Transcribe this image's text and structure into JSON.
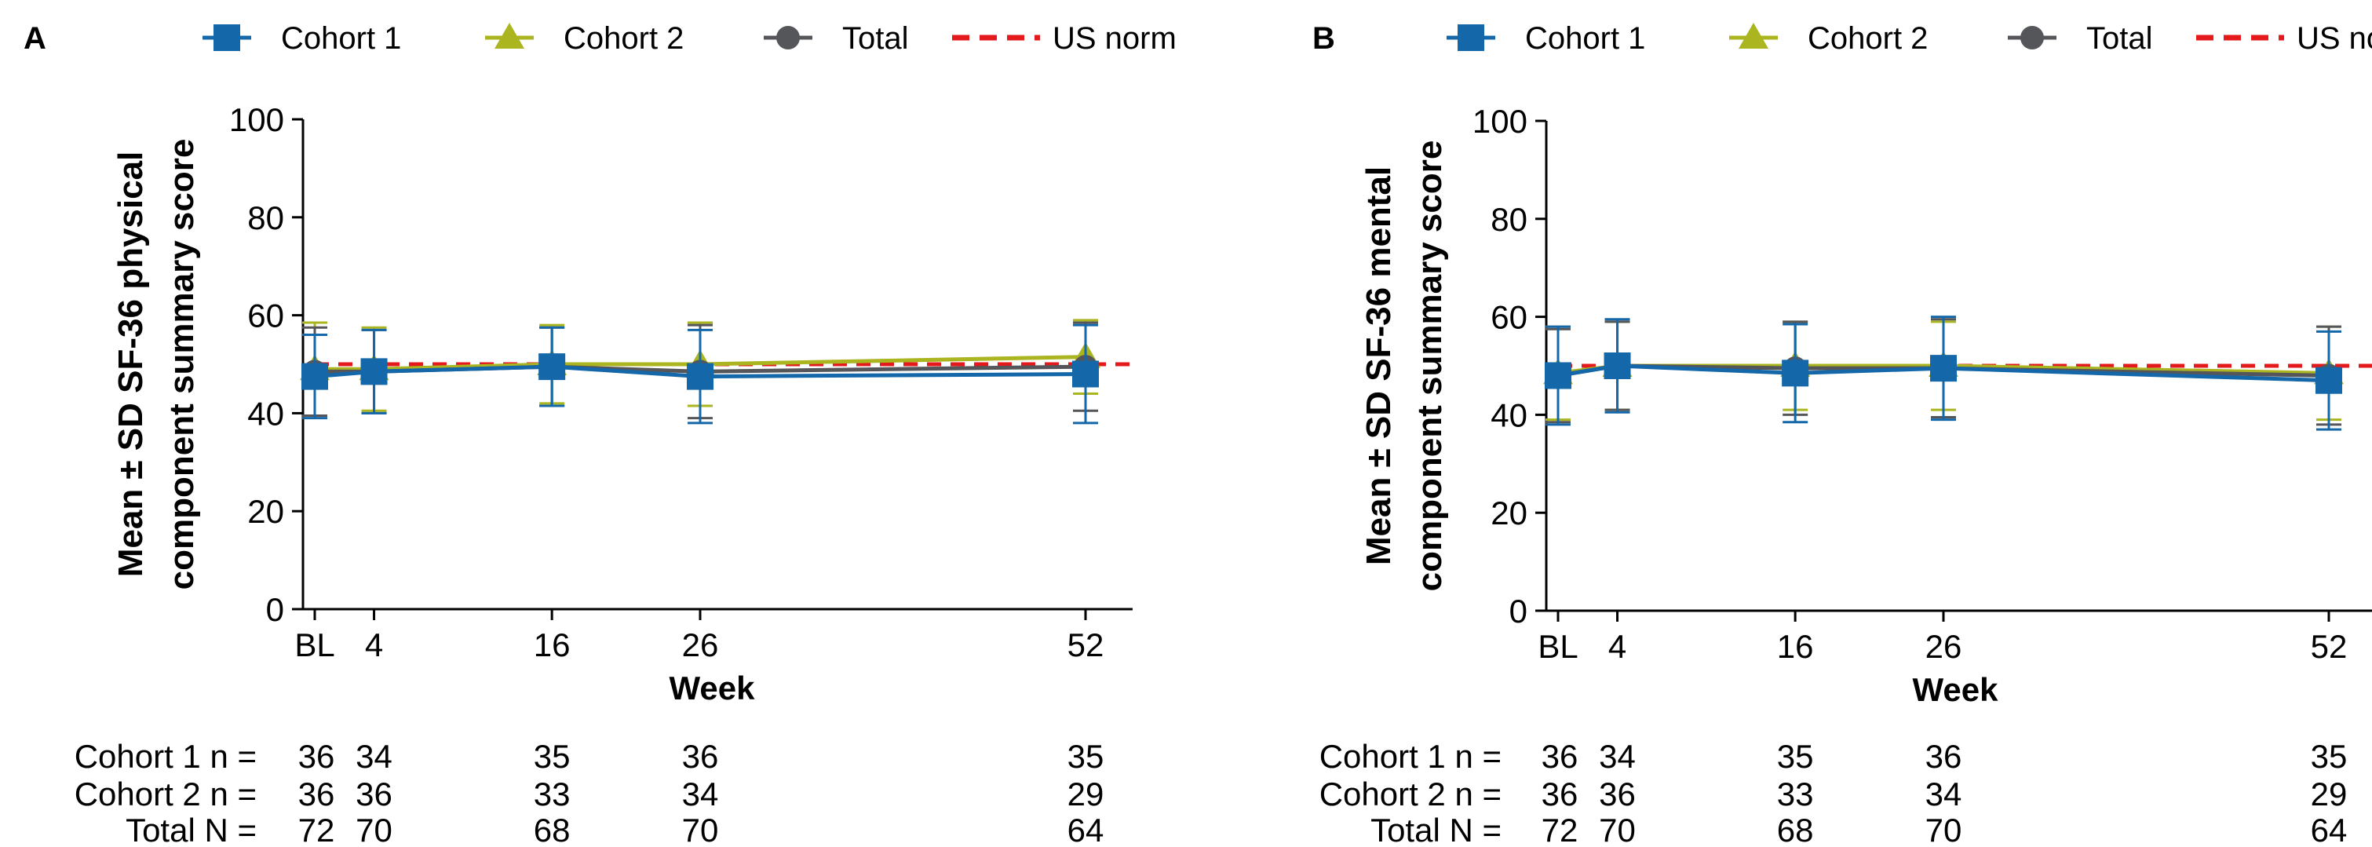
{
  "chart_data": [
    {
      "type": "line",
      "panel_label": "A",
      "xlabel": "Week",
      "ylabel_lines": [
        "Mean ± SD SF-36 physical",
        "component summary score"
      ],
      "ylim": [
        0,
        100
      ],
      "yticks": [
        0,
        20,
        40,
        60,
        80,
        100
      ],
      "x": [
        0,
        4,
        16,
        26,
        52
      ],
      "xtick_labels": [
        "BL",
        "4",
        "16",
        "26",
        "52"
      ],
      "grid": false,
      "legend_position": "top",
      "series": [
        {
          "name": "Cohort 1",
          "color": "#1467a8",
          "marker": "square",
          "values": [
            47.5,
            48.5,
            49.5,
            47.5,
            48.0
          ],
          "sd": [
            8.5,
            8.5,
            8.0,
            9.5,
            10.0
          ]
        },
        {
          "name": "Cohort 2",
          "color": "#aab520",
          "marker": "triangle",
          "values": [
            49.0,
            49.0,
            50.0,
            50.0,
            51.5
          ],
          "sd": [
            9.5,
            8.5,
            8.0,
            8.5,
            7.5
          ]
        },
        {
          "name": "Total",
          "color": "#55565a",
          "marker": "circle",
          "values": [
            48.5,
            48.5,
            49.5,
            48.5,
            49.5
          ],
          "sd": [
            9.0,
            8.5,
            8.0,
            9.5,
            9.0
          ]
        }
      ],
      "reference_line": {
        "name": "US norm",
        "value": 50,
        "color": "#e3191c"
      },
      "n_table": [
        {
          "label": "Cohort 1 n =",
          "values": [
            "36",
            "34",
            "35",
            "36",
            "35"
          ]
        },
        {
          "label": "Cohort 2 n =",
          "values": [
            "36",
            "36",
            "33",
            "34",
            "29"
          ]
        },
        {
          "label": "Total N =",
          "values": [
            "72",
            "70",
            "68",
            "70",
            "64"
          ]
        }
      ]
    },
    {
      "type": "line",
      "panel_label": "B",
      "xlabel": "Week",
      "ylabel_lines": [
        "Mean ± SD SF-36 mental",
        "component summary score"
      ],
      "ylim": [
        0,
        100
      ],
      "yticks": [
        0,
        20,
        40,
        60,
        80,
        100
      ],
      "x": [
        0,
        4,
        16,
        26,
        52
      ],
      "xtick_labels": [
        "BL",
        "4",
        "16",
        "26",
        "52"
      ],
      "grid": false,
      "legend_position": "top",
      "series": [
        {
          "name": "Cohort 1",
          "color": "#1467a8",
          "marker": "square",
          "values": [
            48.0,
            50.0,
            48.5,
            49.5,
            47.0
          ],
          "sd": [
            10.0,
            9.5,
            10.0,
            10.5,
            10.0
          ]
        },
        {
          "name": "Cohort 2",
          "color": "#aab520",
          "marker": "triangle",
          "values": [
            48.5,
            50.0,
            50.0,
            50.0,
            48.5
          ],
          "sd": [
            9.5,
            9.0,
            9.0,
            9.0,
            9.5
          ]
        },
        {
          "name": "Total",
          "color": "#55565a",
          "marker": "circle",
          "values": [
            48.0,
            50.0,
            49.5,
            49.5,
            48.0
          ],
          "sd": [
            9.5,
            9.0,
            9.5,
            10.0,
            10.0
          ]
        }
      ],
      "reference_line": {
        "name": "US norm",
        "value": 50,
        "color": "#e3191c"
      },
      "n_table": [
        {
          "label": "Cohort 1 n =",
          "values": [
            "36",
            "34",
            "35",
            "36",
            "35"
          ]
        },
        {
          "label": "Cohort 2 n =",
          "values": [
            "36",
            "36",
            "33",
            "34",
            "29"
          ]
        },
        {
          "label": "Total N =",
          "values": [
            "72",
            "70",
            "68",
            "70",
            "64"
          ]
        }
      ]
    }
  ]
}
